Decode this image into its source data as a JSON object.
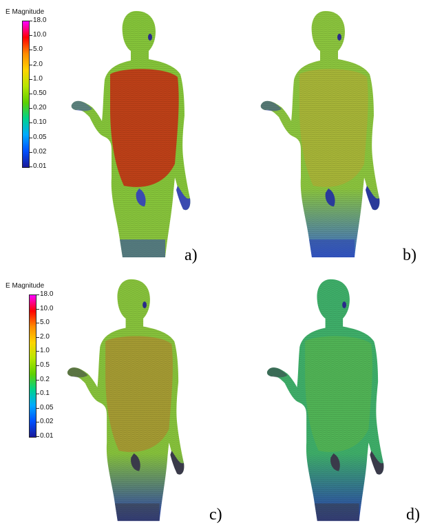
{
  "legends": [
    {
      "title": "E Magnitude",
      "ticks": [
        "18.0",
        "10.0",
        "5.0",
        "2.0",
        "1.0",
        "0.50",
        "0.20",
        "0.10",
        "0.05",
        "0.02",
        "0.01"
      ],
      "colors": [
        "#ff00ff",
        "#ff0000",
        "#ff8c00",
        "#ffd400",
        "#b8e600",
        "#5fd000",
        "#00d28c",
        "#00aaff",
        "#0050ff",
        "#1a1a9a"
      ]
    },
    {
      "title": "E Magnitude",
      "ticks": [
        "18.0",
        "10.0",
        "5.0",
        "2.0",
        "1.0",
        "0.5",
        "0.2",
        "0.1",
        "0.05",
        "0.02",
        "0.01"
      ],
      "colors": [
        "#ff00ff",
        "#ff0000",
        "#ff8c00",
        "#ffd400",
        "#b8e600",
        "#5fd000",
        "#00d28c",
        "#00aaff",
        "#0050ff",
        "#1a1a9a"
      ]
    }
  ],
  "panels": [
    {
      "label": "a)",
      "skin": "#86c63a",
      "torso": "#c23a16",
      "torso_opacity": 0.95,
      "legs_low": "#8bc43e",
      "hand": "#3a4ab0",
      "feet": "#2a3fb0"
    },
    {
      "label": "b)",
      "skin": "#8cc63e",
      "torso": "#c9a230",
      "torso_opacity": 0.45,
      "legs_low": "#3a6ad0",
      "hand": "#2a3a9a",
      "feet": "#2a3fb0"
    },
    {
      "label": "c)",
      "skin": "#88c43c",
      "torso": "#c4732a",
      "torso_opacity": 0.5,
      "legs_low": "#2a3fb0",
      "hand": "#3a3a4a",
      "feet": "#3a3a44"
    },
    {
      "label": "d)",
      "skin": "#3fb06a",
      "torso": "#6fbf3a",
      "torso_opacity": 0.4,
      "legs_low": "#2a3fb0",
      "hand": "#3a3a4a",
      "feet": "#3a3a44"
    }
  ]
}
